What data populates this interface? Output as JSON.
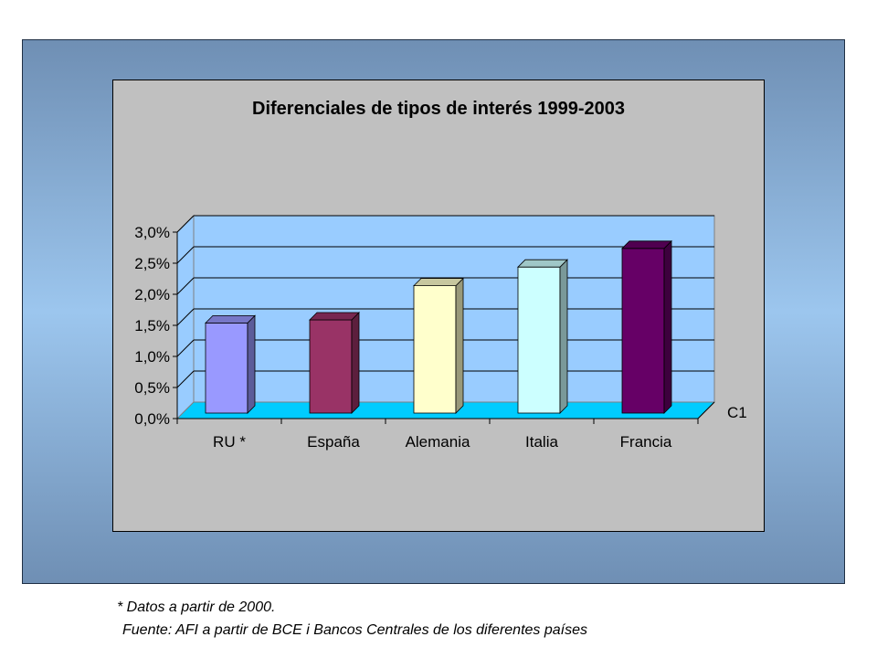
{
  "chart_data": {
    "type": "bar",
    "title": "Diferenciales de tipos de interés 1999-2003",
    "categories": [
      "RU *",
      "España",
      "Alemania",
      "Italia",
      "Francia"
    ],
    "series": [
      {
        "name": "C1",
        "values": [
          1.45,
          1.5,
          2.05,
          2.35,
          2.65
        ],
        "colors": [
          "#9999ff",
          "#993366",
          "#ffffcc",
          "#ccffff",
          "#660066"
        ]
      }
    ],
    "y_ticks": [
      "0,0%",
      "0,5%",
      "1,0%",
      "1,5%",
      "2,0%",
      "2,5%",
      "3,0%"
    ],
    "ylim": [
      0,
      3.0
    ],
    "grid": true,
    "legend": "right"
  },
  "footnotes": {
    "note1": "* Datos a partir de 2000.",
    "note2": "Fuente: AFI a partir de BCE i Bancos Centrales de los diferentes países"
  }
}
